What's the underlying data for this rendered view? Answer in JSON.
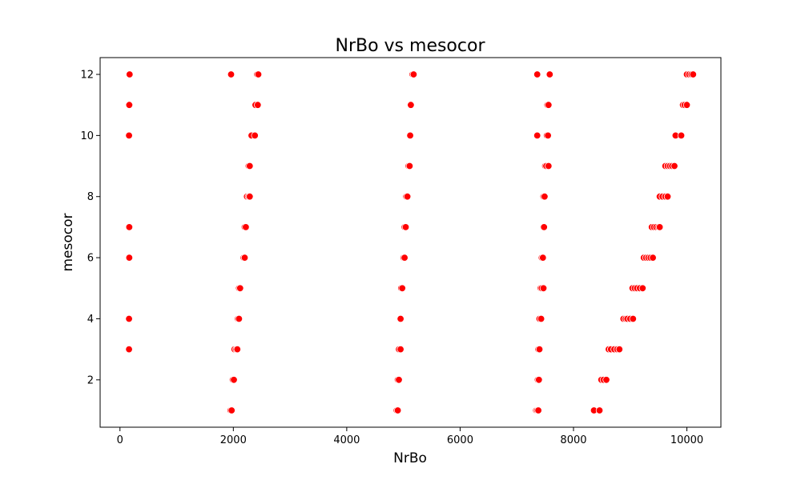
{
  "chart_data": {
    "type": "scatter",
    "title": "NrBo vs mesocor",
    "xlabel": "NrBo",
    "ylabel": "mesocor",
    "xlim": [
      -350,
      10600
    ],
    "ylim": [
      0.45,
      12.55
    ],
    "xticks": [
      0,
      2000,
      4000,
      6000,
      8000,
      10000
    ],
    "yticks": [
      2,
      4,
      6,
      8,
      10,
      12
    ],
    "point_color": "#ff0000",
    "point_edge_color": "#ffffff",
    "series": [
      {
        "name": "points",
        "points": [
          {
            "x": 170,
            "y": 12
          },
          {
            "x": 165,
            "y": 11
          },
          {
            "x": 160,
            "y": 10
          },
          {
            "x": 165,
            "y": 7
          },
          {
            "x": 165,
            "y": 6
          },
          {
            "x": 160,
            "y": 4
          },
          {
            "x": 160,
            "y": 3
          },
          {
            "x": 1960,
            "y": 12
          },
          {
            "x": 2420,
            "y": 12
          },
          {
            "x": 2440,
            "y": 12
          },
          {
            "x": 2390,
            "y": 11
          },
          {
            "x": 2430,
            "y": 11
          },
          {
            "x": 2320,
            "y": 10
          },
          {
            "x": 2380,
            "y": 10
          },
          {
            "x": 2270,
            "y": 9
          },
          {
            "x": 2290,
            "y": 9
          },
          {
            "x": 2240,
            "y": 8
          },
          {
            "x": 2270,
            "y": 8
          },
          {
            "x": 2290,
            "y": 8
          },
          {
            "x": 2200,
            "y": 7
          },
          {
            "x": 2220,
            "y": 7
          },
          {
            "x": 2180,
            "y": 6
          },
          {
            "x": 2200,
            "y": 6
          },
          {
            "x": 2100,
            "y": 5
          },
          {
            "x": 2120,
            "y": 5
          },
          {
            "x": 2080,
            "y": 4
          },
          {
            "x": 2100,
            "y": 4
          },
          {
            "x": 2020,
            "y": 3
          },
          {
            "x": 2050,
            "y": 3
          },
          {
            "x": 2070,
            "y": 3
          },
          {
            "x": 1990,
            "y": 2
          },
          {
            "x": 2010,
            "y": 2
          },
          {
            "x": 1950,
            "y": 1
          },
          {
            "x": 1970,
            "y": 1
          },
          {
            "x": 5160,
            "y": 12
          },
          {
            "x": 5180,
            "y": 12
          },
          {
            "x": 5130,
            "y": 11
          },
          {
            "x": 5120,
            "y": 10
          },
          {
            "x": 5090,
            "y": 9
          },
          {
            "x": 5110,
            "y": 9
          },
          {
            "x": 5050,
            "y": 8
          },
          {
            "x": 5070,
            "y": 8
          },
          {
            "x": 5020,
            "y": 7
          },
          {
            "x": 5040,
            "y": 7
          },
          {
            "x": 5000,
            "y": 6
          },
          {
            "x": 5020,
            "y": 6
          },
          {
            "x": 4960,
            "y": 5
          },
          {
            "x": 4980,
            "y": 5
          },
          {
            "x": 4950,
            "y": 4
          },
          {
            "x": 4920,
            "y": 3
          },
          {
            "x": 4950,
            "y": 3
          },
          {
            "x": 4900,
            "y": 2
          },
          {
            "x": 4920,
            "y": 2
          },
          {
            "x": 4880,
            "y": 1
          },
          {
            "x": 4900,
            "y": 1
          },
          {
            "x": 7360,
            "y": 12
          },
          {
            "x": 7580,
            "y": 12
          },
          {
            "x": 7540,
            "y": 11
          },
          {
            "x": 7560,
            "y": 11
          },
          {
            "x": 7360,
            "y": 10
          },
          {
            "x": 7530,
            "y": 10
          },
          {
            "x": 7550,
            "y": 10
          },
          {
            "x": 7500,
            "y": 9
          },
          {
            "x": 7520,
            "y": 9
          },
          {
            "x": 7560,
            "y": 9
          },
          {
            "x": 7470,
            "y": 8
          },
          {
            "x": 7490,
            "y": 8
          },
          {
            "x": 7470,
            "y": 7
          },
          {
            "x": 7480,
            "y": 7
          },
          {
            "x": 7440,
            "y": 6
          },
          {
            "x": 7460,
            "y": 6
          },
          {
            "x": 7420,
            "y": 5
          },
          {
            "x": 7440,
            "y": 5
          },
          {
            "x": 7470,
            "y": 5
          },
          {
            "x": 7400,
            "y": 4
          },
          {
            "x": 7430,
            "y": 4
          },
          {
            "x": 7380,
            "y": 3
          },
          {
            "x": 7400,
            "y": 3
          },
          {
            "x": 7370,
            "y": 2
          },
          {
            "x": 7390,
            "y": 2
          },
          {
            "x": 7340,
            "y": 1
          },
          {
            "x": 7360,
            "y": 1
          },
          {
            "x": 7380,
            "y": 1
          },
          {
            "x": 10000,
            "y": 12
          },
          {
            "x": 10040,
            "y": 12
          },
          {
            "x": 10080,
            "y": 12
          },
          {
            "x": 10110,
            "y": 12
          },
          {
            "x": 9930,
            "y": 11
          },
          {
            "x": 9960,
            "y": 11
          },
          {
            "x": 10000,
            "y": 11
          },
          {
            "x": 9800,
            "y": 10
          },
          {
            "x": 9900,
            "y": 10
          },
          {
            "x": 9620,
            "y": 9
          },
          {
            "x": 9660,
            "y": 9
          },
          {
            "x": 9700,
            "y": 9
          },
          {
            "x": 9740,
            "y": 9
          },
          {
            "x": 9780,
            "y": 9
          },
          {
            "x": 9520,
            "y": 8
          },
          {
            "x": 9570,
            "y": 8
          },
          {
            "x": 9620,
            "y": 8
          },
          {
            "x": 9660,
            "y": 8
          },
          {
            "x": 9380,
            "y": 7
          },
          {
            "x": 9420,
            "y": 7
          },
          {
            "x": 9460,
            "y": 7
          },
          {
            "x": 9500,
            "y": 7
          },
          {
            "x": 9520,
            "y": 7
          },
          {
            "x": 9240,
            "y": 6
          },
          {
            "x": 9280,
            "y": 6
          },
          {
            "x": 9320,
            "y": 6
          },
          {
            "x": 9360,
            "y": 6
          },
          {
            "x": 9400,
            "y": 6
          },
          {
            "x": 9040,
            "y": 5
          },
          {
            "x": 9080,
            "y": 5
          },
          {
            "x": 9120,
            "y": 5
          },
          {
            "x": 9170,
            "y": 5
          },
          {
            "x": 9220,
            "y": 5
          },
          {
            "x": 8880,
            "y": 4
          },
          {
            "x": 8920,
            "y": 4
          },
          {
            "x": 8950,
            "y": 4
          },
          {
            "x": 9000,
            "y": 4
          },
          {
            "x": 9050,
            "y": 4
          },
          {
            "x": 8620,
            "y": 3
          },
          {
            "x": 8660,
            "y": 3
          },
          {
            "x": 8720,
            "y": 3
          },
          {
            "x": 8770,
            "y": 3
          },
          {
            "x": 8810,
            "y": 3
          },
          {
            "x": 8490,
            "y": 2
          },
          {
            "x": 8530,
            "y": 2
          },
          {
            "x": 8580,
            "y": 2
          },
          {
            "x": 8360,
            "y": 1
          },
          {
            "x": 8460,
            "y": 1
          }
        ]
      }
    ]
  }
}
